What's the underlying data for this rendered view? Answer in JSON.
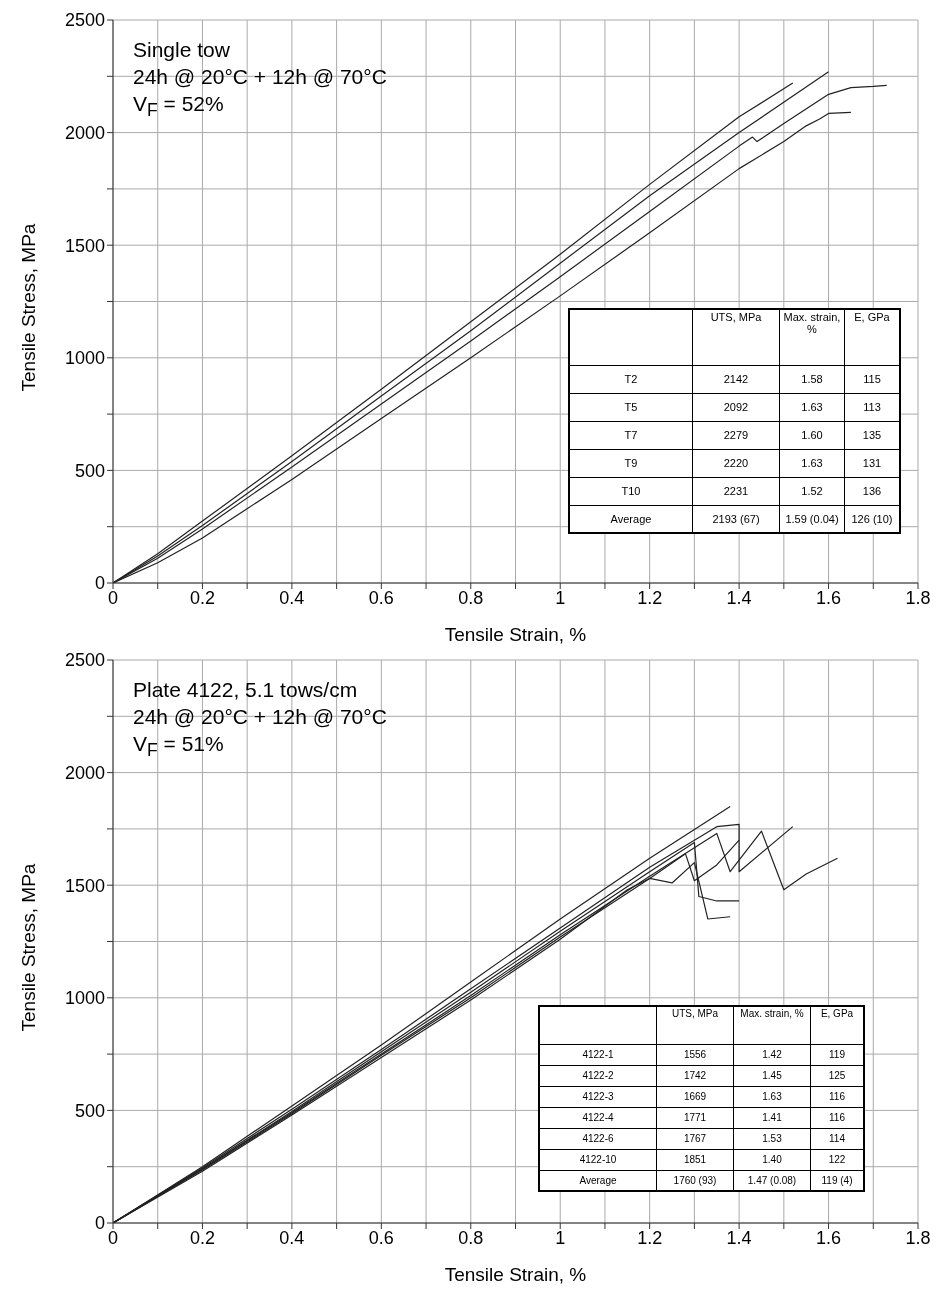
{
  "chart_data": [
    {
      "type": "line",
      "xlabel": "Tensile Strain, %",
      "ylabel": "Tensile Stress, MPa",
      "xlim": [
        0,
        1.8
      ],
      "ylim": [
        0,
        2500
      ],
      "xticks": [
        0,
        {
          "value": 0.1,
          "label": null
        },
        0.2,
        {
          "value": 0.3,
          "label": null
        },
        0.4,
        {
          "value": 0.5,
          "label": null
        },
        0.6,
        {
          "value": 0.7,
          "label": null
        },
        0.8,
        {
          "value": 0.9,
          "label": null
        },
        1,
        {
          "value": 1.1,
          "label": null
        },
        1.2,
        {
          "value": 1.3,
          "label": null
        },
        1.4,
        {
          "value": 1.5,
          "label": null
        },
        1.6,
        {
          "value": 1.7,
          "label": null
        },
        1.8
      ],
      "yticks": [
        0,
        {
          "value": 250,
          "label": null
        },
        500,
        {
          "value": 750,
          "label": null
        },
        1000,
        {
          "value": 1250,
          "label": null
        },
        1500,
        {
          "value": 1750,
          "label": null
        },
        2000,
        {
          "value": 2250,
          "label": null
        },
        2500
      ],
      "grid": true,
      "legend": false,
      "marker": "none",
      "line_style": "solid",
      "annotations": [
        "Single tow",
        "24h @ 20°C + 12h @ 70°C",
        "V$_{F}$ = 52%",
        "UTS, MPa",
        "Max. strain, %",
        "E, GPa",
        "T2",
        "2142",
        "1.58",
        "115",
        "T5",
        "2092",
        "1.63",
        "113",
        "T7",
        "2279",
        "1.60",
        "135",
        "T9",
        "2220",
        "1.63",
        "131",
        "T10",
        "2231",
        "1.52",
        "136",
        "Average",
        "2193 (67)",
        "1.59 (0.04)",
        "126 (10)"
      ],
      "series": [
        {
          "color": "#222222",
          "x": [
            0,
            0.1,
            0.2,
            0.4,
            0.6,
            0.8,
            1.0,
            1.2,
            1.4,
            1.52
          ],
          "values": [
            0,
            130,
            275,
            565,
            860,
            1160,
            1460,
            1770,
            2070,
            2220
          ]
        },
        {
          "color": "#222222",
          "x": [
            0,
            0.1,
            0.2,
            0.4,
            0.6,
            0.8,
            1.0,
            1.2,
            1.4,
            1.6
          ],
          "values": [
            0,
            120,
            255,
            540,
            830,
            1120,
            1420,
            1720,
            2000,
            2270
          ]
        },
        {
          "color": "#222222",
          "x": [
            0,
            0.1,
            0.2,
            0.4,
            0.6,
            0.8,
            1.0,
            1.2,
            1.4,
            1.43,
            1.44,
            1.5,
            1.6,
            1.65,
            1.7,
            1.73
          ],
          "values": [
            0,
            110,
            240,
            515,
            795,
            1075,
            1360,
            1650,
            1940,
            1980,
            1960,
            2040,
            2170,
            2200,
            2205,
            2210
          ]
        },
        {
          "color": "#222222",
          "x": [
            0,
            0.1,
            0.2,
            0.4,
            0.6,
            0.8,
            1.0,
            1.2,
            1.4,
            1.5,
            1.55,
            1.58,
            1.6,
            1.65
          ],
          "values": [
            0,
            90,
            200,
            460,
            730,
            1000,
            1275,
            1555,
            1840,
            1960,
            2030,
            2060,
            2085,
            2090
          ]
        }
      ]
    },
    {
      "type": "line",
      "xlabel": "Tensile Strain, %",
      "ylabel": "Tensile Stress, MPa",
      "xlim": [
        0,
        1.8
      ],
      "ylim": [
        0,
        2500
      ],
      "xticks": [
        0,
        {
          "value": 0.1,
          "label": null
        },
        0.2,
        {
          "value": 0.3,
          "label": null
        },
        0.4,
        {
          "value": 0.5,
          "label": null
        },
        0.6,
        {
          "value": 0.7,
          "label": null
        },
        0.8,
        {
          "value": 0.9,
          "label": null
        },
        1,
        {
          "value": 1.1,
          "label": null
        },
        1.2,
        {
          "value": 1.3,
          "label": null
        },
        1.4,
        {
          "value": 1.5,
          "label": null
        },
        1.6,
        {
          "value": 1.7,
          "label": null
        },
        1.8
      ],
      "yticks": [
        0,
        {
          "value": 250,
          "label": null
        },
        500,
        {
          "value": 750,
          "label": null
        },
        1000,
        {
          "value": 1250,
          "label": null
        },
        1500,
        {
          "value": 1750,
          "label": null
        },
        2000,
        {
          "value": 2250,
          "label": null
        },
        2500
      ],
      "grid": true,
      "legend": false,
      "marker": "none",
      "line_style": "solid",
      "annotations": [
        "Plate 4122, 5.1 tows/cm",
        "24h @ 20°C + 12h @ 70°C",
        "V$_{F}$ = 51%",
        "UTS, MPa",
        "Max. strain, %",
        "E, GPa",
        "4122-1",
        "1556",
        "1.42",
        "119",
        "4122-2",
        "1742",
        "1.45",
        "125",
        "4122-3",
        "1669",
        "1.63",
        "116",
        "4122-4",
        "1771",
        "1.41",
        "116",
        "4122-6",
        "1767",
        "1.53",
        "114",
        "4122-10",
        "1851",
        "1.40",
        "122",
        "Average",
        "1760 (93)",
        "1.47 (0.08)",
        "119 (4)"
      ],
      "series": [
        {
          "color": "#222222",
          "x": [
            0,
            0.2,
            0.4,
            0.6,
            0.8,
            1.0,
            1.2,
            1.38
          ],
          "values": [
            0,
            250,
            520,
            790,
            1070,
            1350,
            1620,
            1850
          ]
        },
        {
          "color": "#222222",
          "x": [
            0,
            0.2,
            0.4,
            0.6,
            0.8,
            1.0,
            1.2,
            1.35,
            1.4,
            1.4,
            1.52
          ],
          "values": [
            0,
            245,
            505,
            770,
            1040,
            1310,
            1580,
            1760,
            1770,
            1560,
            1760
          ]
        },
        {
          "color": "#222222",
          "x": [
            0,
            0.2,
            0.4,
            0.6,
            0.8,
            1.0,
            1.2,
            1.3,
            1.31,
            1.35,
            1.4
          ],
          "values": [
            0,
            240,
            495,
            760,
            1025,
            1295,
            1560,
            1690,
            1450,
            1430,
            1430
          ]
        },
        {
          "color": "#222222",
          "x": [
            0,
            0.2,
            0.4,
            0.6,
            0.8,
            1.0,
            1.2,
            1.35,
            1.38,
            1.45,
            1.5,
            1.55,
            1.62
          ],
          "values": [
            0,
            240,
            490,
            750,
            1010,
            1280,
            1540,
            1730,
            1560,
            1740,
            1480,
            1550,
            1620
          ]
        },
        {
          "color": "#222222",
          "x": [
            0,
            0.2,
            0.4,
            0.6,
            0.8,
            1.0,
            1.2,
            1.28,
            1.3,
            1.35,
            1.4
          ],
          "values": [
            0,
            235,
            485,
            745,
            1000,
            1270,
            1530,
            1640,
            1520,
            1590,
            1700
          ]
        },
        {
          "color": "#222222",
          "x": [
            0,
            0.2,
            0.4,
            0.6,
            0.8,
            1.0,
            1.15,
            1.2,
            1.25,
            1.3,
            1.33,
            1.38
          ],
          "values": [
            0,
            230,
            480,
            735,
            990,
            1260,
            1480,
            1530,
            1510,
            1600,
            1350,
            1360
          ]
        }
      ]
    }
  ]
}
